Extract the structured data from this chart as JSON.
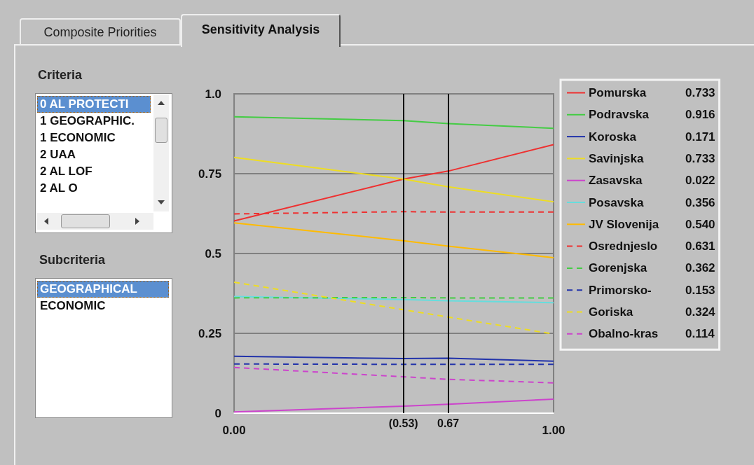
{
  "chart_data": {
    "type": "line",
    "x": [
      0,
      0.53,
      0.67,
      1
    ],
    "xlim": [
      0,
      1
    ],
    "xticks": [
      {
        "value": 0,
        "label": "0.00"
      },
      {
        "value": 1,
        "label": "1.00"
      }
    ],
    "ylim": [
      0,
      1
    ],
    "yticks": [
      0,
      0.25,
      0.5,
      0.75,
      {
        "value": 1,
        "label": "1.0"
      }
    ],
    "grid": "y",
    "legend": "right",
    "marker": "none",
    "ref_lines": [
      {
        "axis": "x",
        "value": 0.53,
        "label": "(0.53)",
        "color": "#000000"
      },
      {
        "axis": "x",
        "value": 0.67,
        "label": "0.67",
        "color": "#000000"
      }
    ],
    "annotations": [
      "Composite Priorities",
      "Sensitivity Analysis",
      "Criteria",
      "0 AL PROTECTI",
      "1 GEOGRAPHIC.",
      "1 ECONOMIC",
      "2 UAA",
      "2 AL LOF",
      "2 AL O",
      "Subcriteria",
      "GEOGRAPHICAL",
      "ECONOMIC"
    ],
    "series": [
      {
        "name": "Pomurska 0.733",
        "color": "#ee3030",
        "line_style": "solid",
        "values": [
          0.602,
          0.733,
          0.758,
          0.841
        ]
      },
      {
        "name": "Podravska 0.916",
        "color": "#44cc44",
        "line_style": "solid",
        "values": [
          0.928,
          0.916,
          0.907,
          0.892
        ]
      },
      {
        "name": "Koroska 0.171",
        "color": "#2233aa",
        "line_style": "solid",
        "values": [
          0.178,
          0.171,
          0.172,
          0.163
        ]
      },
      {
        "name": "Savinjska 0.733",
        "color": "#eedd22",
        "line_style": "solid",
        "values": [
          0.801,
          0.733,
          0.709,
          0.662
        ]
      },
      {
        "name": "Zasavska 0.022",
        "color": "#cc44cc",
        "line_style": "solid",
        "values": [
          0.004,
          0.022,
          0.028,
          0.044
        ]
      },
      {
        "name": "Posavska 0.356",
        "color": "#66dddd",
        "line_style": "solid",
        "values": [
          0.365,
          0.356,
          0.352,
          0.346
        ]
      },
      {
        "name": "JV Slovenija 0.540",
        "color": "#ffbb00",
        "line_style": "solid",
        "values": [
          0.596,
          0.54,
          0.523,
          0.487
        ]
      },
      {
        "name": "Osrednjeslo 0.631",
        "color": "#ee3030",
        "line_style": "dashed",
        "values": [
          0.624,
          0.631,
          0.63,
          0.63
        ]
      },
      {
        "name": "Gorenjska 0.362",
        "color": "#44cc44",
        "line_style": "dashed",
        "values": [
          0.361,
          0.362,
          0.361,
          0.361
        ]
      },
      {
        "name": "Primorsko- 0.153",
        "color": "#2233aa",
        "line_style": "dashed",
        "values": [
          0.154,
          0.153,
          0.153,
          0.153
        ]
      },
      {
        "name": "Goriska 0.324",
        "color": "#eedd22",
        "line_style": "dashed",
        "values": [
          0.41,
          0.324,
          0.301,
          0.248
        ]
      },
      {
        "name": "Obalno-kras 0.114",
        "color": "#cc44cc",
        "line_style": "dashed",
        "values": [
          0.143,
          0.114,
          0.106,
          0.095
        ]
      }
    ]
  }
}
